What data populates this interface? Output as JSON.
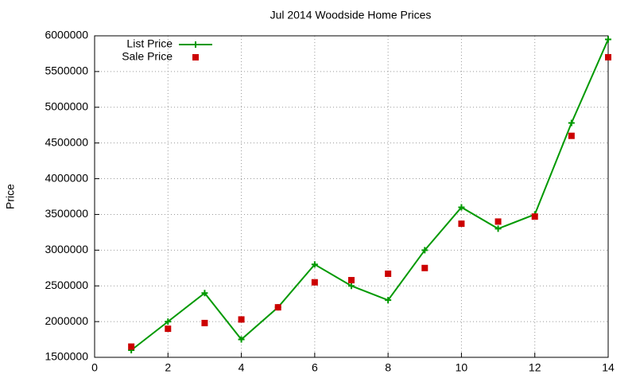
{
  "chart_data": {
    "type": "line",
    "title": "Jul 2014 Woodside Home Prices",
    "y_label": "Price",
    "x": [
      1,
      2,
      3,
      4,
      5,
      6,
      7,
      8,
      9,
      10,
      11,
      12,
      13,
      14
    ],
    "series": [
      {
        "name": "List Price",
        "color": "#009900",
        "style": "line-points",
        "values": [
          1600000,
          2000000,
          2400000,
          1750000,
          2200000,
          2800000,
          2500000,
          2300000,
          3000000,
          3600000,
          3300000,
          3500000,
          4780000,
          5950000
        ]
      },
      {
        "name": "Sale Price",
        "color": "#cc0000",
        "style": "points",
        "values": [
          1650000,
          1900000,
          1980000,
          2030000,
          2200000,
          2550000,
          2580000,
          2670000,
          2750000,
          3370000,
          3400000,
          3470000,
          4600000,
          5700000
        ]
      }
    ],
    "xlim": [
      0,
      14
    ],
    "xticks": [
      0,
      2,
      4,
      6,
      8,
      10,
      12,
      14
    ],
    "ylim": [
      1500000,
      6000000
    ],
    "yticks": [
      1500000,
      2000000,
      2500000,
      3000000,
      3500000,
      4000000,
      4500000,
      5000000,
      5500000,
      6000000
    ],
    "grid": true,
    "legend": "top-left"
  }
}
